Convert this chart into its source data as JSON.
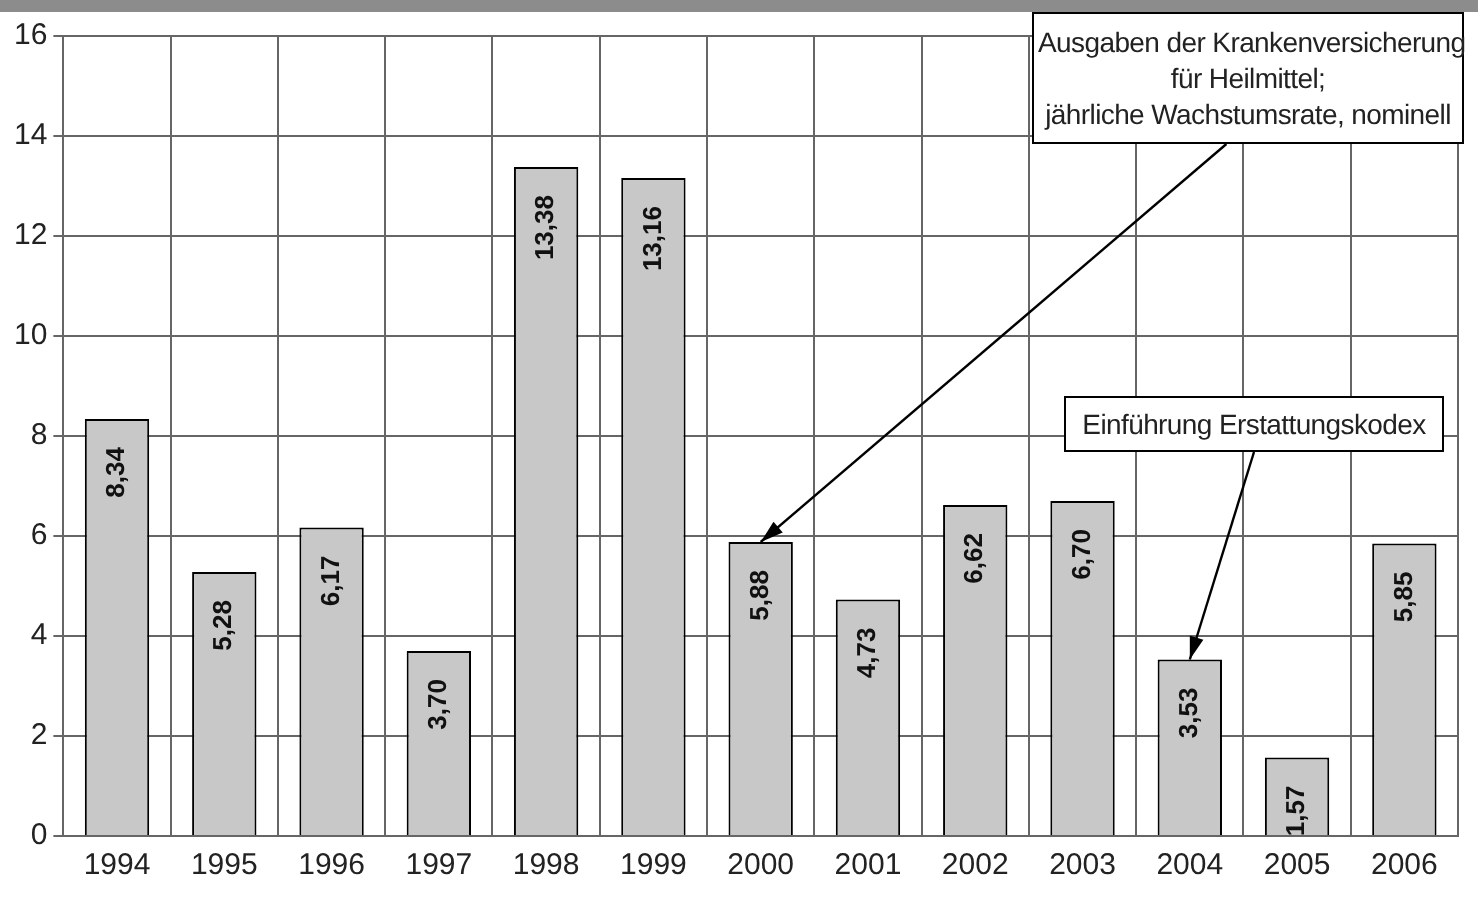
{
  "chart_data": {
    "type": "bar",
    "categories": [
      "1994",
      "1995",
      "1996",
      "1997",
      "1998",
      "1999",
      "2000",
      "2001",
      "2002",
      "2003",
      "2004",
      "2005",
      "2006"
    ],
    "values": [
      8.34,
      5.28,
      6.17,
      3.7,
      13.38,
      13.16,
      5.88,
      4.73,
      6.62,
      6.7,
      3.53,
      1.57,
      5.85
    ],
    "value_labels": [
      "8,34",
      "5,28",
      "6,17",
      "3,70",
      "13,38",
      "13,16",
      "5,88",
      "4,73",
      "6,62",
      "6,70",
      "3,53",
      "1,57",
      "5,85"
    ],
    "color": "#c8c8c8",
    "ylim": [
      0,
      16
    ],
    "yticks": [
      0,
      2,
      4,
      6,
      8,
      10,
      12,
      14,
      16
    ],
    "grid": true,
    "legend": false,
    "annotations": [
      {
        "text": "Ausgaben der Krankenversicherung\nfür Heilmittel;\njährliche Wachstumsrate, nominell",
        "x": "2000",
        "y": 5.88
      },
      {
        "text": "Einführung Erstattungskodex",
        "x": "2004",
        "y": 3.53
      }
    ]
  }
}
